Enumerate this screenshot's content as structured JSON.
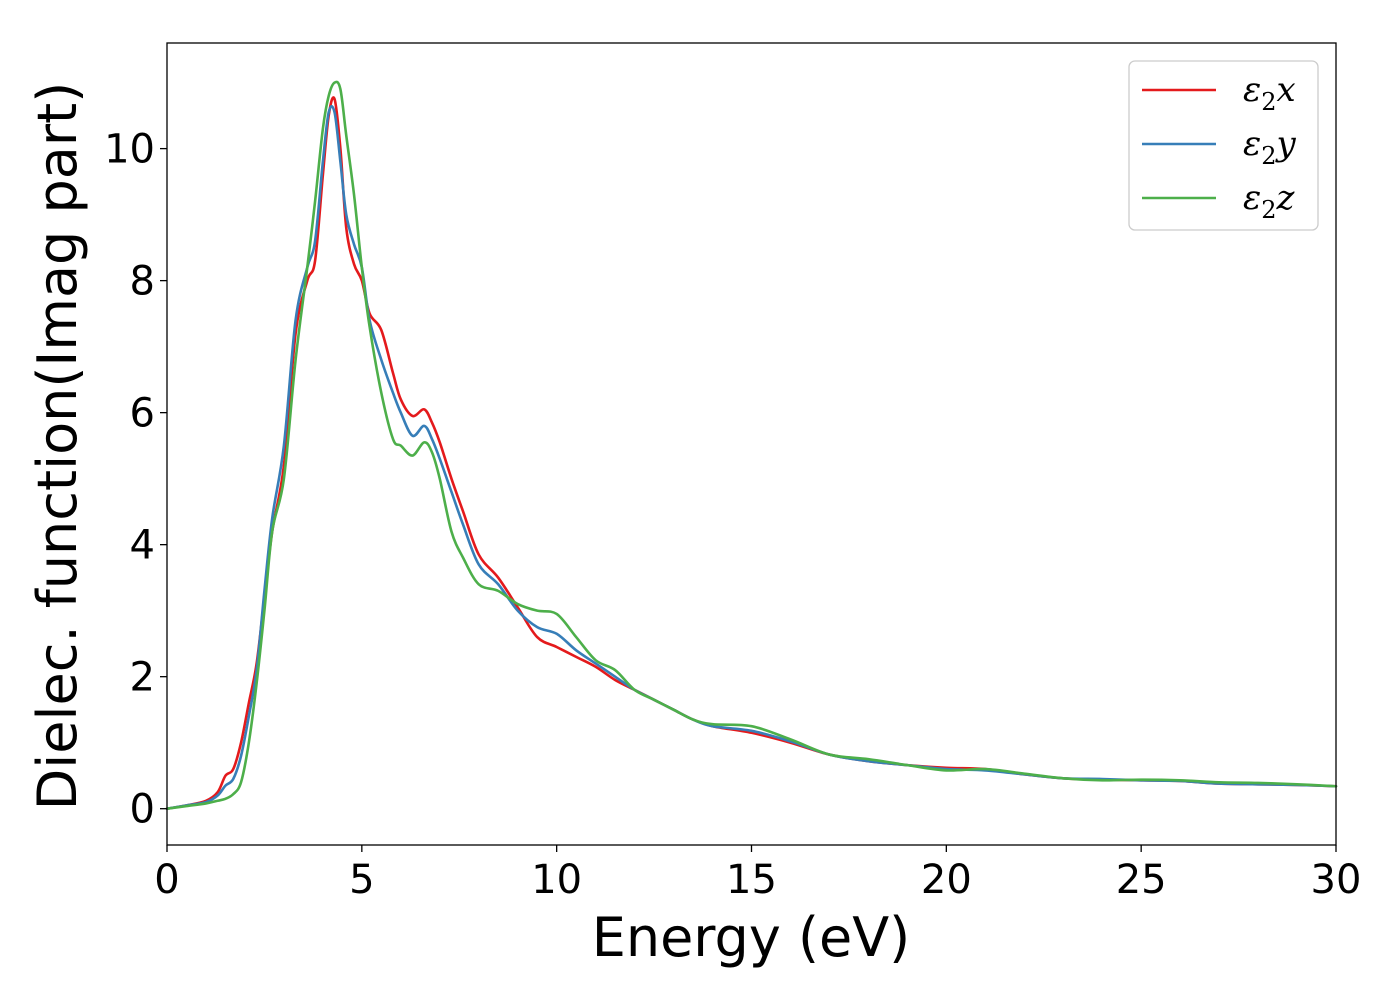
{
  "chart_data": {
    "type": "line",
    "title": "",
    "xlabel": "Energy (eV)",
    "ylabel": "Dielec. function(Imag part)",
    "xlim": [
      0,
      30
    ],
    "ylim": [
      -0.55,
      11.6
    ],
    "xticks": [
      0,
      5,
      10,
      15,
      20,
      25,
      30
    ],
    "yticks": [
      0,
      2,
      4,
      6,
      8,
      10
    ],
    "grid": false,
    "legend_position": "top-right",
    "series": [
      {
        "name": "ε2x",
        "label_main": "ε",
        "label_sub": "2",
        "label_end": "x",
        "color": "#e41a1c",
        "x": [
          0,
          0.5,
          1.0,
          1.3,
          1.5,
          1.7,
          1.9,
          2.1,
          2.3,
          2.5,
          2.7,
          3.0,
          3.3,
          3.6,
          3.8,
          4.0,
          4.15,
          4.3,
          4.45,
          4.6,
          4.8,
          5.0,
          5.2,
          5.5,
          5.8,
          6.0,
          6.3,
          6.6,
          6.8,
          7.0,
          7.3,
          7.6,
          8.0,
          8.5,
          9.0,
          9.5,
          10.0,
          10.5,
          11.0,
          11.5,
          12.0,
          12.5,
          13.0,
          13.5,
          14.0,
          15.0,
          16.0,
          17.0,
          18.0,
          19.0,
          20.0,
          21.0,
          22.0,
          23.0,
          24.0,
          25.0,
          26.0,
          27.0,
          28.0,
          29.0,
          30.0
        ],
        "y": [
          0.0,
          0.05,
          0.12,
          0.25,
          0.5,
          0.6,
          1.0,
          1.6,
          2.2,
          3.2,
          4.2,
          5.2,
          7.2,
          8.0,
          8.3,
          9.6,
          10.5,
          10.75,
          10.0,
          8.8,
          8.25,
          8.0,
          7.5,
          7.25,
          6.6,
          6.2,
          5.95,
          6.05,
          5.85,
          5.55,
          5.0,
          4.5,
          3.85,
          3.5,
          3.05,
          2.6,
          2.45,
          2.3,
          2.15,
          1.95,
          1.8,
          1.65,
          1.5,
          1.35,
          1.25,
          1.15,
          1.0,
          0.82,
          0.72,
          0.66,
          0.62,
          0.6,
          0.52,
          0.46,
          0.44,
          0.43,
          0.42,
          0.38,
          0.37,
          0.36,
          0.34
        ]
      },
      {
        "name": "ε2y",
        "label_main": "ε",
        "label_sub": "2",
        "label_end": "y",
        "color": "#377eb8",
        "x": [
          0,
          0.5,
          1.0,
          1.3,
          1.5,
          1.7,
          1.9,
          2.1,
          2.3,
          2.5,
          2.7,
          3.0,
          3.3,
          3.6,
          3.8,
          4.0,
          4.15,
          4.3,
          4.45,
          4.6,
          4.8,
          5.0,
          5.2,
          5.5,
          5.8,
          6.0,
          6.3,
          6.6,
          6.8,
          7.0,
          7.3,
          7.6,
          8.0,
          8.5,
          9.0,
          9.5,
          10.0,
          10.5,
          11.0,
          11.5,
          12.0,
          12.5,
          13.0,
          13.5,
          14.0,
          15.0,
          16.0,
          17.0,
          18.0,
          19.0,
          20.0,
          21.0,
          22.0,
          23.0,
          24.0,
          25.0,
          26.0,
          27.0,
          28.0,
          29.0,
          30.0
        ],
        "y": [
          0.0,
          0.05,
          0.1,
          0.2,
          0.35,
          0.45,
          0.8,
          1.4,
          2.1,
          3.3,
          4.4,
          5.5,
          7.4,
          8.2,
          8.6,
          9.8,
          10.55,
          10.55,
          9.8,
          9.0,
          8.55,
          8.2,
          7.4,
          6.8,
          6.3,
          6.0,
          5.65,
          5.8,
          5.6,
          5.3,
          4.8,
          4.3,
          3.7,
          3.4,
          3.0,
          2.75,
          2.65,
          2.4,
          2.2,
          2.0,
          1.8,
          1.65,
          1.5,
          1.35,
          1.25,
          1.18,
          1.02,
          0.82,
          0.72,
          0.66,
          0.6,
          0.58,
          0.52,
          0.46,
          0.45,
          0.43,
          0.42,
          0.38,
          0.37,
          0.36,
          0.34
        ]
      },
      {
        "name": "ε2z",
        "label_main": "ε",
        "label_sub": "2",
        "label_end": "z",
        "color": "#4daf4a",
        "x": [
          0,
          0.5,
          1.0,
          1.3,
          1.5,
          1.7,
          1.9,
          2.1,
          2.3,
          2.5,
          2.7,
          3.0,
          3.3,
          3.6,
          3.8,
          4.0,
          4.15,
          4.3,
          4.45,
          4.6,
          4.8,
          5.0,
          5.2,
          5.5,
          5.8,
          6.0,
          6.3,
          6.6,
          6.8,
          7.0,
          7.3,
          7.6,
          8.0,
          8.5,
          9.0,
          9.5,
          10.0,
          10.5,
          11.0,
          11.5,
          12.0,
          12.5,
          13.0,
          13.5,
          14.0,
          15.0,
          16.0,
          17.0,
          18.0,
          19.0,
          20.0,
          21.0,
          22.0,
          23.0,
          24.0,
          25.0,
          26.0,
          27.0,
          28.0,
          29.0,
          30.0
        ],
        "y": [
          0.0,
          0.04,
          0.08,
          0.12,
          0.15,
          0.22,
          0.4,
          1.0,
          1.9,
          3.0,
          4.2,
          5.0,
          6.8,
          8.2,
          9.2,
          10.3,
          10.8,
          11.0,
          10.9,
          10.2,
          9.3,
          8.2,
          7.3,
          6.3,
          5.6,
          5.5,
          5.35,
          5.55,
          5.4,
          5.0,
          4.2,
          3.8,
          3.4,
          3.3,
          3.1,
          3.0,
          2.95,
          2.6,
          2.25,
          2.1,
          1.8,
          1.65,
          1.5,
          1.35,
          1.28,
          1.25,
          1.05,
          0.82,
          0.75,
          0.66,
          0.58,
          0.6,
          0.53,
          0.46,
          0.43,
          0.44,
          0.43,
          0.4,
          0.39,
          0.37,
          0.34
        ]
      }
    ]
  }
}
